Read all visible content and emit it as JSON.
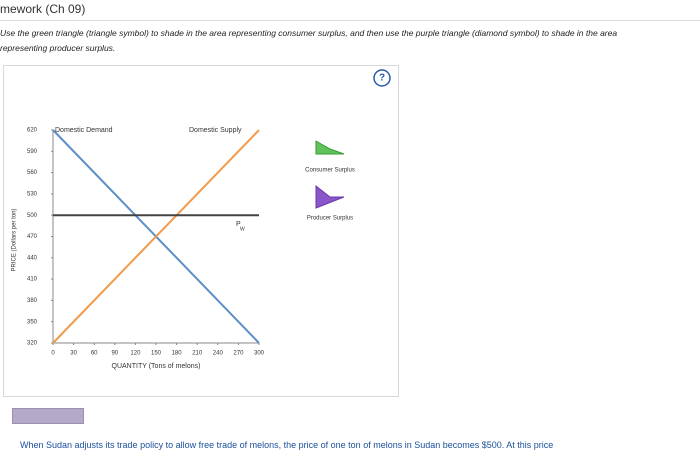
{
  "header": {
    "title": "mework (Ch 09)"
  },
  "instructions": "Use the green triangle (triangle symbol) to shade in the area representing consumer surplus, and then use the purple triangle (diamond symbol) to shade in the area representing producer surplus.",
  "help_icon": "?",
  "tools": [
    "Consumer Surplus",
    "Producer Surplus"
  ],
  "bottom_text": "When Sudan adjusts its trade policy to allow free trade of melons, the price of one ton of melons in Sudan becomes $500. At this price",
  "chart_data": {
    "type": "line",
    "x_label": "QUANTITY (Tons of melons)",
    "y_label": "PRICE (Dollars per ton)",
    "xlim": [
      0,
      300
    ],
    "ylim": [
      320,
      620
    ],
    "xticks": [
      0,
      30,
      60,
      90,
      120,
      150,
      180,
      210,
      240,
      270,
      300
    ],
    "yticks": [
      320,
      350,
      380,
      410,
      440,
      470,
      500,
      530,
      560,
      590,
      620
    ],
    "series": [
      {
        "name": "Domestic Demand",
        "color": "#5b8fc7",
        "x": [
          0,
          300
        ],
        "values": [
          620,
          320
        ]
      },
      {
        "name": "Domestic Supply",
        "color": "#f29a4a",
        "x": [
          0,
          300
        ],
        "values": [
          320,
          620
        ]
      }
    ],
    "world_price": {
      "label": "P",
      "subscript": "W",
      "value": 500,
      "color": "#444444"
    }
  }
}
